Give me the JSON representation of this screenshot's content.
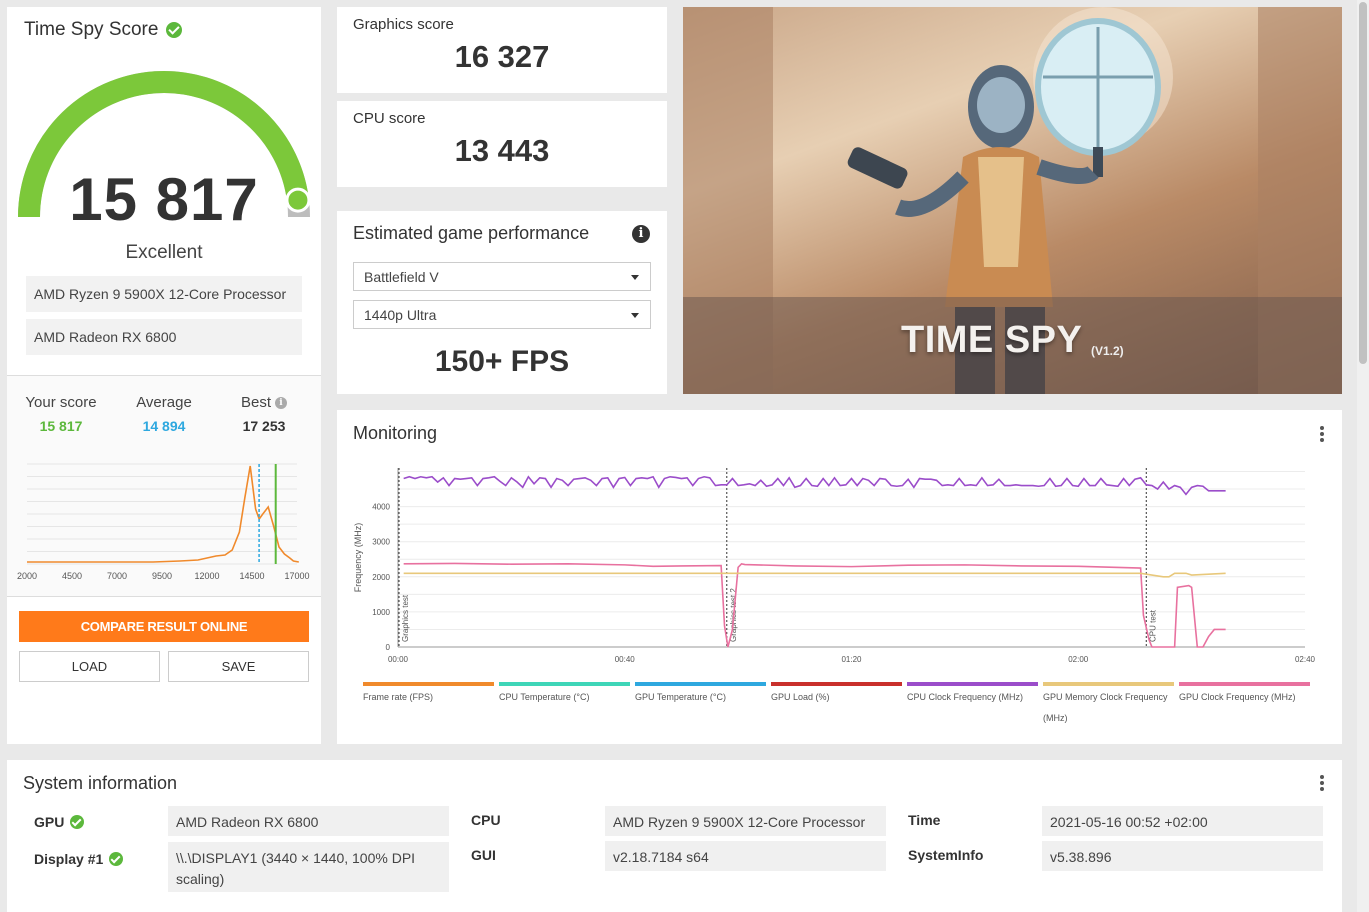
{
  "score_card": {
    "title": "Time Spy Score",
    "score": "15 817",
    "score_value": 15817,
    "gauge_fraction": 0.96,
    "rating": "Excellent",
    "cpu": "AMD Ryzen 9 5900X 12-Core Processor",
    "gpu": "AMD Radeon RX 6800",
    "your_score_label": "Your score",
    "your_score": "15 817",
    "average_label": "Average",
    "average": "14 894",
    "best_label": "Best",
    "best": "17 253",
    "compare_button": "COMPARE RESULT ONLINE",
    "load_button": "LOAD",
    "save_button": "SAVE",
    "colors": {
      "your": "#5cb83c",
      "average": "#2ea8df",
      "accent": "#ff7a1a"
    }
  },
  "distribution_chart": {
    "type": "line",
    "x_ticks": [
      "2000",
      "4500",
      "7000",
      "9500",
      "12000",
      "14500",
      "17000"
    ],
    "xlim": [
      2000,
      17000
    ],
    "x": [
      2000,
      4500,
      7000,
      9000,
      10500,
      11500,
      12000,
      12500,
      13000,
      13400,
      13800,
      14100,
      14400,
      14700,
      14900,
      15100,
      15400,
      15700,
      16000,
      16300,
      16600,
      16800,
      17100
    ],
    "y": [
      0.02,
      0.02,
      0.02,
      0.02,
      0.03,
      0.04,
      0.06,
      0.08,
      0.09,
      0.14,
      0.32,
      0.66,
      0.98,
      0.55,
      0.45,
      0.5,
      0.57,
      0.38,
      0.17,
      0.1,
      0.06,
      0.03,
      0.02
    ],
    "average_marker": 14894,
    "your_marker": 15817
  },
  "graphics": {
    "title": "Graphics score",
    "value": "16 327"
  },
  "cpu_score": {
    "title": "CPU score",
    "value": "13 443"
  },
  "game_perf": {
    "title": "Estimated game performance",
    "game": "Battlefield V",
    "preset": "1440p Ultra",
    "fps": "150+ FPS"
  },
  "hero": {
    "title": "TIME SPY",
    "version": "(V1.2)"
  },
  "monitoring": {
    "title": "Monitoring",
    "chart_data": {
      "type": "line",
      "ylabel": "Frequency (MHz)",
      "y_ticks": [
        "0",
        "1000",
        "2000",
        "3000",
        "4000"
      ],
      "ylim": [
        0,
        5100
      ],
      "x_ticks": [
        "00:00",
        "00:40",
        "01:20",
        "02:00",
        "02:40"
      ],
      "xlim": [
        0,
        160
      ],
      "markers": [
        {
          "label": "Graphics test",
          "x": 0
        },
        {
          "label": "Graphics test 2",
          "x": 58
        },
        {
          "label": "CPU test",
          "x": 132
        }
      ],
      "series": [
        {
          "name": "CPU Clock Frequency (MHz)",
          "color": "#9b4dca",
          "x": [
            1,
            2,
            3,
            4,
            5,
            6,
            7,
            8,
            9,
            10,
            11,
            12,
            13,
            14,
            15,
            16,
            17,
            18,
            19,
            20,
            21,
            22,
            23,
            24,
            25,
            26,
            27,
            28,
            29,
            30,
            31,
            32,
            33,
            34,
            35,
            36,
            37,
            38,
            39,
            40,
            41,
            42,
            43,
            44,
            45,
            46,
            47,
            48,
            49,
            50,
            51,
            52,
            53,
            54,
            55,
            56,
            57,
            58,
            59,
            60,
            61,
            62,
            63,
            64,
            65,
            66,
            67,
            68,
            69,
            70,
            71,
            72,
            73,
            74,
            75,
            76,
            77,
            78,
            79,
            80,
            81,
            82,
            83,
            84,
            85,
            86,
            87,
            88,
            89,
            90,
            91,
            92,
            93,
            94,
            95,
            96,
            97,
            98,
            99,
            100,
            101,
            102,
            103,
            104,
            105,
            106,
            107,
            108,
            109,
            110,
            111,
            112,
            113,
            114,
            115,
            116,
            117,
            118,
            119,
            120,
            121,
            122,
            123,
            124,
            125,
            126,
            127,
            128,
            129,
            130,
            131,
            132,
            133,
            134,
            135,
            136,
            137,
            138,
            139,
            140,
            141,
            142,
            143,
            144,
            145,
            146
          ],
          "y": [
            4800,
            4850,
            4800,
            4850,
            4820,
            4850,
            4700,
            4820,
            4600,
            4800,
            4780,
            4800,
            4820,
            4600,
            4800,
            4820,
            4850,
            4720,
            4600,
            4820,
            4700,
            4550,
            4850,
            4650,
            4820,
            4800,
            4550,
            4800,
            4750,
            4600,
            4780,
            4800,
            4820,
            4750,
            4600,
            4800,
            4820,
            4550,
            4800,
            4830,
            4600,
            4800,
            4820,
            4800,
            4850,
            4550,
            4800,
            4850,
            4830,
            4800,
            4820,
            4600,
            4800,
            4850,
            4820,
            4600,
            4620,
            4620,
            4800,
            4600,
            4620,
            4650,
            4600,
            4750,
            4580,
            4620,
            4800,
            4600,
            4820,
            4550,
            4600,
            4800,
            4600,
            4580,
            4800,
            4600,
            4820,
            4600,
            4620,
            4800,
            4600,
            4800,
            4750,
            4600,
            4800,
            4780,
            4600,
            4580,
            4600,
            4780,
            4550,
            4800,
            4780,
            4780,
            4750,
            4600,
            4620,
            4600,
            4800,
            4600,
            4620,
            4600,
            4820,
            4600,
            4620,
            4780,
            4600,
            4600,
            4620,
            4600,
            4600,
            4600,
            4580,
            4600,
            4800,
            4580,
            4600,
            4800,
            4600,
            4580,
            4800,
            4600,
            4600,
            4800,
            4620,
            4600,
            4580,
            4800,
            4600,
            4780,
            4820,
            4620,
            4600,
            4500,
            4700,
            4500,
            4600,
            4550,
            4350,
            4550,
            4600,
            4580,
            4450,
            4450,
            4450,
            4450
          ]
        },
        {
          "name": "GPU Clock Frequency (MHz)",
          "color": "#e8719f",
          "x": [
            1,
            10,
            20,
            30,
            40,
            45,
            50,
            57,
            57.6,
            58.2,
            59,
            60,
            60.6,
            61.2,
            70,
            80,
            90,
            100,
            110,
            120,
            131,
            131.5,
            132.5,
            133,
            137,
            137.5,
            139.5,
            140,
            141,
            142,
            143,
            144,
            145,
            146
          ],
          "y": [
            2370,
            2380,
            2360,
            2370,
            2340,
            2300,
            2310,
            2320,
            600,
            0,
            500,
            2270,
            2370,
            2350,
            2310,
            2290,
            2330,
            2340,
            2310,
            2300,
            2250,
            900,
            200,
            0,
            0,
            1700,
            1750,
            1700,
            0,
            0,
            300,
            500,
            500,
            500
          ]
        },
        {
          "name": "GPU Memory Clock Frequency (MHz)",
          "color": "#e8c87b",
          "x": [
            1,
            20,
            40,
            57,
            57.6,
            58.6,
            60,
            80,
            100,
            120,
            131,
            133,
            135,
            136,
            137,
            139,
            140,
            146
          ],
          "y": [
            2100,
            2100,
            2100,
            2100,
            2100,
            2100,
            2100,
            2100,
            2100,
            2100,
            2100,
            2050,
            2000,
            2000,
            2100,
            2100,
            2050,
            2100
          ]
        }
      ]
    },
    "legend": [
      {
        "label": "Frame rate (FPS)",
        "color": "#f08a2c"
      },
      {
        "label": "CPU Temperature (°C)",
        "color": "#3ed6b8"
      },
      {
        "label": "GPU Temperature (°C)",
        "color": "#2ea8df"
      },
      {
        "label": "GPU Load (%)",
        "color": "#c9302c"
      },
      {
        "label": "CPU Clock Frequency (MHz)",
        "color": "#9b4dca"
      },
      {
        "label": "GPU Memory Clock Frequency (MHz)",
        "color": "#e8c87b"
      },
      {
        "label": "GPU Clock Frequency (MHz)",
        "color": "#e8719f"
      }
    ]
  },
  "system_info": {
    "title": "System information",
    "gpu_label": "GPU",
    "gpu_value": "AMD Radeon RX 6800",
    "display_label": "Display #1",
    "display_value": "\\\\.\\DISPLAY1 (3440 × 1440, 100% DPI scaling)",
    "cpu_label": "CPU",
    "cpu_value": "AMD Ryzen 9 5900X 12-Core Processor",
    "gui_label": "GUI",
    "gui_value": "v2.18.7184 s64",
    "time_label": "Time",
    "time_value": "2021-05-16 00:52 +02:00",
    "sysinfo_label": "SystemInfo",
    "sysinfo_value": "v5.38.896"
  }
}
